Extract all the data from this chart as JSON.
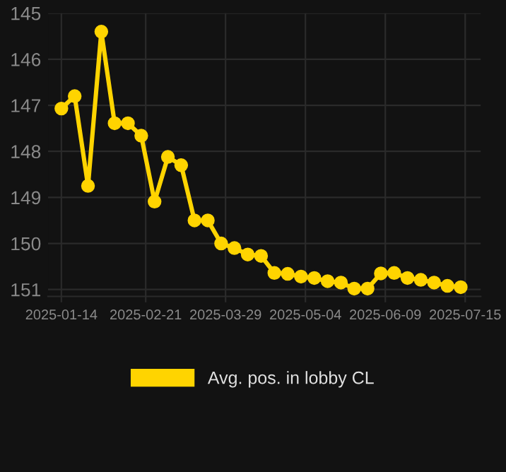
{
  "chart_data": {
    "type": "line",
    "x": [
      "2025-01-14",
      "2025-01-20",
      "2025-01-26",
      "2025-02-01",
      "2025-02-07",
      "2025-02-13",
      "2025-02-19",
      "2025-02-25",
      "2025-03-03",
      "2025-03-09",
      "2025-03-15",
      "2025-03-21",
      "2025-03-27",
      "2025-04-02",
      "2025-04-08",
      "2025-04-14",
      "2025-04-20",
      "2025-04-26",
      "2025-05-02",
      "2025-05-08",
      "2025-05-14",
      "2025-05-20",
      "2025-05-26",
      "2025-06-01",
      "2025-06-07",
      "2025-06-13",
      "2025-06-19",
      "2025-06-25",
      "2025-07-01",
      "2025-07-07",
      "2025-07-13"
    ],
    "series": [
      {
        "name": "Avg. pos. in lobby CL",
        "color": "#ffd400",
        "values": [
          147.07,
          146.8,
          148.75,
          145.4,
          147.39,
          147.39,
          147.66,
          149.09,
          148.12,
          148.3,
          149.5,
          149.5,
          150.0,
          150.1,
          150.24,
          150.27,
          150.64,
          150.66,
          150.72,
          150.75,
          150.82,
          150.85,
          150.98,
          150.98,
          150.65,
          150.64,
          150.75,
          150.79,
          150.85,
          150.92,
          150.95
        ]
      }
    ],
    "xlim": [
      "2025-01-08",
      "2025-07-22"
    ],
    "ylim": [
      151.15,
      145
    ],
    "xticks": [
      "2025-01-14",
      "2025-02-21",
      "2025-03-29",
      "2025-05-04",
      "2025-06-09",
      "2025-07-15"
    ],
    "yticks": [
      145,
      146,
      147,
      148,
      149,
      150,
      151
    ],
    "grid": true,
    "legend": "bottom",
    "marker": "circle",
    "line_style": "solid"
  }
}
